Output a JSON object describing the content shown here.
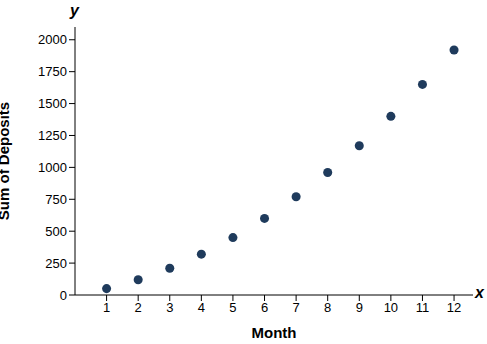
{
  "chart_data": {
    "type": "scatter",
    "x_label": "Month",
    "y_label": "Sum of Deposits",
    "x_symbol": "x",
    "y_symbol": "y",
    "x": [
      1,
      2,
      3,
      4,
      5,
      6,
      7,
      8,
      9,
      10,
      11,
      12
    ],
    "values": [
      50,
      120,
      210,
      320,
      450,
      600,
      770,
      960,
      1170,
      1400,
      1650,
      1920
    ],
    "color": "#1f3b5c",
    "marker": "circle",
    "xlim": [
      0,
      12.6
    ],
    "xticks": [
      1,
      2,
      3,
      4,
      5,
      6,
      7,
      8,
      9,
      10,
      11,
      12
    ],
    "ylim": [
      0,
      2100
    ],
    "yticks": [
      0,
      250,
      500,
      750,
      1000,
      1250,
      1500,
      1750,
      2000
    ],
    "grid": false
  }
}
